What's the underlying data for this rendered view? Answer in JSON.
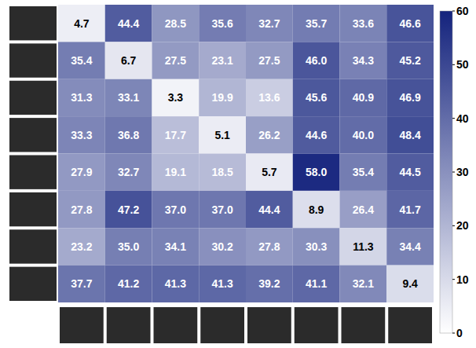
{
  "chart_data": {
    "type": "heatmap",
    "cells": [
      [
        4.7,
        44.4,
        28.5,
        35.6,
        32.7,
        35.7,
        33.6,
        46.6
      ],
      [
        35.4,
        6.7,
        27.5,
        23.1,
        27.5,
        46.0,
        34.3,
        45.2
      ],
      [
        31.3,
        33.1,
        3.3,
        19.9,
        13.6,
        45.6,
        40.9,
        46.9
      ],
      [
        33.3,
        36.8,
        17.7,
        5.1,
        26.2,
        44.6,
        40.0,
        48.4
      ],
      [
        27.9,
        32.7,
        19.1,
        18.5,
        5.7,
        58.0,
        35.4,
        44.5
      ],
      [
        27.8,
        47.2,
        37.0,
        37.0,
        44.4,
        8.9,
        26.4,
        41.7
      ],
      [
        23.2,
        35.0,
        34.1,
        30.2,
        27.8,
        30.3,
        11.3,
        34.4
      ],
      [
        37.7,
        41.2,
        41.3,
        41.3,
        39.2,
        41.1,
        32.1,
        9.4
      ]
    ],
    "value_labels": [
      [
        "4.7",
        "44.4",
        "28.5",
        "35.6",
        "32.7",
        "35.7",
        "33.6",
        "46.6"
      ],
      [
        "35.4",
        "6.7",
        "27.5",
        "23.1",
        "27.5",
        "46.0",
        "34.3",
        "45.2"
      ],
      [
        "31.3",
        "33.1",
        "3.3",
        "19.9",
        "13.6",
        "45.6",
        "40.9",
        "46.9"
      ],
      [
        "33.3",
        "36.8",
        "17.7",
        "5.1",
        "26.2",
        "44.6",
        "40.0",
        "48.4"
      ],
      [
        "27.9",
        "32.7",
        "19.1",
        "18.5",
        "5.7",
        "58.0",
        "35.4",
        "44.5"
      ],
      [
        "27.8",
        "47.2",
        "37.0",
        "37.0",
        "44.4",
        "8.9",
        "26.4",
        "41.7"
      ],
      [
        "23.2",
        "35.0",
        "34.1",
        "30.2",
        "27.8",
        "30.3",
        "11.3",
        "34.4"
      ],
      [
        "37.7",
        "41.2",
        "41.3",
        "41.3",
        "39.2",
        "41.1",
        "32.1",
        "9.4"
      ]
    ],
    "colorbar_range": [
      0,
      60
    ],
    "colorbar_ticks": [
      0,
      10,
      20,
      30,
      40,
      50,
      60
    ],
    "color": "#14237d",
    "data_labels": true,
    "tick_labels": false
  }
}
